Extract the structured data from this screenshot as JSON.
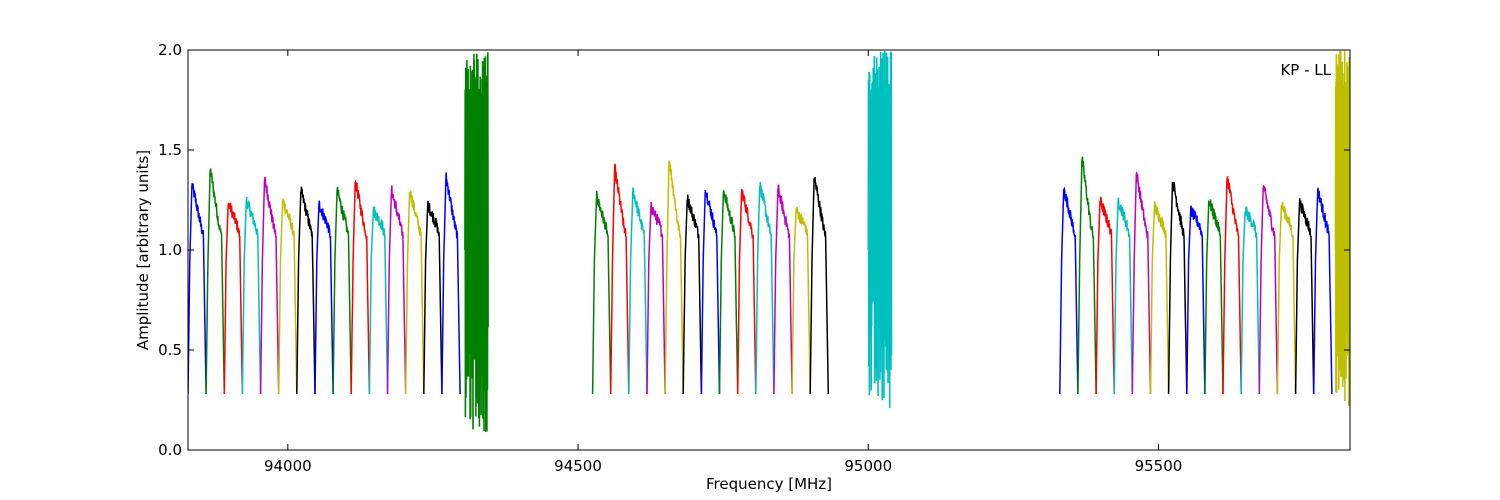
{
  "chart_data": {
    "type": "line",
    "xlabel": "Frequency [MHz]",
    "ylabel": "Amplitude [arbitrary units]",
    "xlim": [
      93828,
      95830
    ],
    "ylim": [
      0.0,
      2.0
    ],
    "x_ticks": [
      94000,
      94500,
      95000,
      95500
    ],
    "y_ticks": [
      0.0,
      0.5,
      1.0,
      1.5,
      2.0
    ],
    "x_tick_labels": [
      "94000",
      "94500",
      "95000",
      "95500"
    ],
    "y_tick_labels": [
      "0.0",
      "0.5",
      "1.0",
      "1.5",
      "2.0"
    ],
    "annotation": "KP - LL",
    "grid": false,
    "line_colors": [
      "#0000ff",
      "#008000",
      "#ff0000",
      "#00bfbf",
      "#bf00bf",
      "#bfbf00",
      "#000000"
    ],
    "channel_width_mhz": 31.25,
    "groups": [
      {
        "start": 93828,
        "peaks": [
          1.33,
          1.41,
          1.24,
          1.25,
          1.36,
          1.25,
          1.3,
          1.23,
          1.3,
          1.35,
          1.2,
          1.3,
          1.3,
          1.23,
          1.37
        ]
      },
      {
        "start": 94525,
        "peaks": [
          1.27,
          1.41,
          1.3,
          1.22,
          1.46,
          1.26,
          1.31,
          1.3,
          1.3,
          1.33,
          1.31,
          1.2,
          1.37
        ]
      },
      {
        "start": 95330,
        "peaks": [
          1.31,
          1.46,
          1.25,
          1.25,
          1.39,
          1.22,
          1.35,
          1.2,
          1.25,
          1.37,
          1.2,
          1.32,
          1.23,
          1.24,
          1.3
        ]
      }
    ],
    "spikes": [
      {
        "x_range": [
          94305,
          94345
        ],
        "color": "#008000",
        "min": 0.09,
        "max": 2.0
      },
      {
        "x_range": [
          95000,
          95040
        ],
        "color": "#00bfbf",
        "min": 0.18,
        "max": 2.0
      },
      {
        "x_range": [
          95805,
          95830
        ],
        "color": "#bfbf00",
        "min": 0.19,
        "max": 2.0
      }
    ]
  }
}
